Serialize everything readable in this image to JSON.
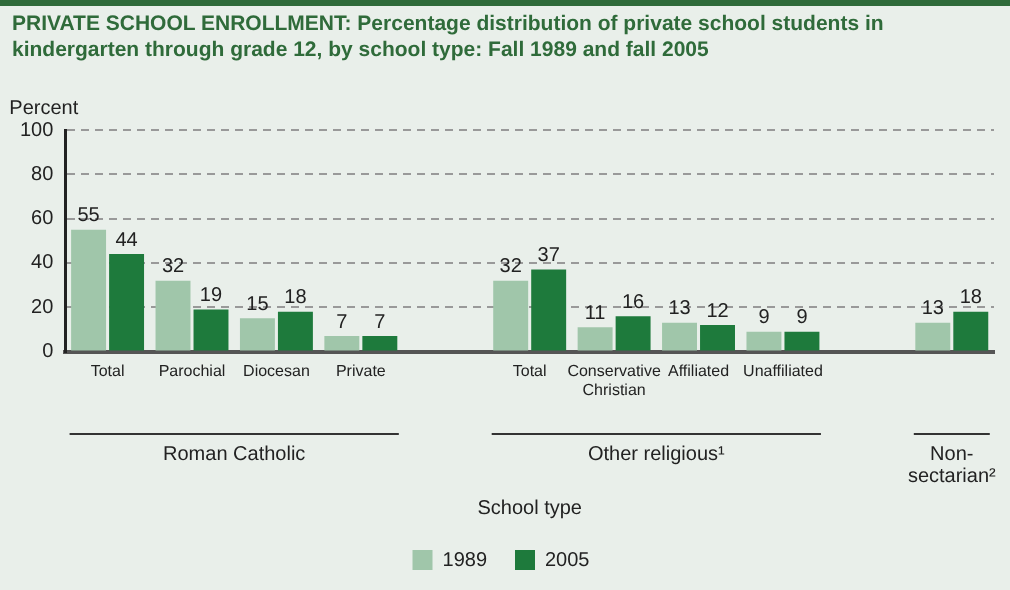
{
  "chart_data": {
    "type": "bar",
    "title": "PRIVATE SCHOOL ENROLLMENT: Percentage distribution of private school students in kindergarten through grade 12, by school type: Fall 1989 and fall 2005",
    "ylabel": "Percent",
    "xlabel": "School type",
    "categories": [
      "Total",
      "Parochial",
      "Diocesan",
      "Private",
      null,
      "Total",
      "Conservative Christian",
      "Affiliated",
      "Unaffiliated",
      null,
      null
    ],
    "series": [
      {
        "name": "1989",
        "color": "#a0c6aa",
        "values": [
          55,
          32,
          15,
          7,
          null,
          32,
          11,
          13,
          9,
          null,
          13
        ]
      },
      {
        "name": "2005",
        "color": "#1e7a3c",
        "values": [
          44,
          19,
          18,
          7,
          null,
          37,
          16,
          12,
          9,
          null,
          18
        ]
      }
    ],
    "annotations": [
      "Roman Catholic",
      "Other religious¹",
      "Non-sectarian²"
    ],
    "ylim": [
      0,
      100
    ],
    "yticks": [
      0,
      20,
      40,
      60,
      80,
      100
    ],
    "grid": "y",
    "legend": "bottom",
    "data_labels": true
  }
}
